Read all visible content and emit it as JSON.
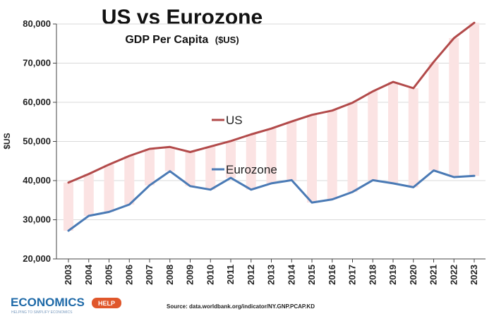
{
  "chart_data": {
    "type": "line",
    "title": "US vs Eurozone",
    "subtitle": "GDP Per Capita",
    "subtitle_unit": "($US)",
    "ylabel": "$US",
    "xlabel": "",
    "ylim": [
      20000,
      80000
    ],
    "yticks": [
      20000,
      30000,
      40000,
      50000,
      60000,
      70000,
      80000
    ],
    "ytick_labels": [
      "20,000",
      "30,000",
      "40,000",
      "50,000",
      "60,000",
      "70,000",
      "80,000"
    ],
    "categories": [
      "2003",
      "2004",
      "2005",
      "2006",
      "2007",
      "2008",
      "2009",
      "2010",
      "2011",
      "2012",
      "2013",
      "2014",
      "2015",
      "2016",
      "2017",
      "2018",
      "2019",
      "2020",
      "2021",
      "2022",
      "2023"
    ],
    "series": [
      {
        "name": "US",
        "color": "#b24a4a",
        "values": [
          39500,
          41700,
          44100,
          46300,
          48100,
          48600,
          47300,
          48700,
          50100,
          51800,
          53300,
          55100,
          56800,
          57900,
          59900,
          62800,
          65200,
          63600,
          70300,
          76400,
          80300
        ]
      },
      {
        "name": "Eurozone",
        "color": "#4a7ab5",
        "values": [
          27200,
          31000,
          32000,
          33900,
          38800,
          42400,
          38600,
          37700,
          40700,
          37700,
          39300,
          40100,
          34400,
          35200,
          37100,
          40100,
          39300,
          38300,
          42600,
          40900,
          41200
        ]
      }
    ],
    "gap_fill_color": "#fbe3e3",
    "grid": true
  },
  "source": "Source: data.worldbank.org/indicator/NY.GNP.PCAP.KD",
  "brand": {
    "name": "ECONOMICS",
    "badge": "HELP",
    "tagline": "HELPING TO SIMPLIFY ECONOMICS",
    "color": "#1f6aa8",
    "badge_color": "#e0572b"
  }
}
